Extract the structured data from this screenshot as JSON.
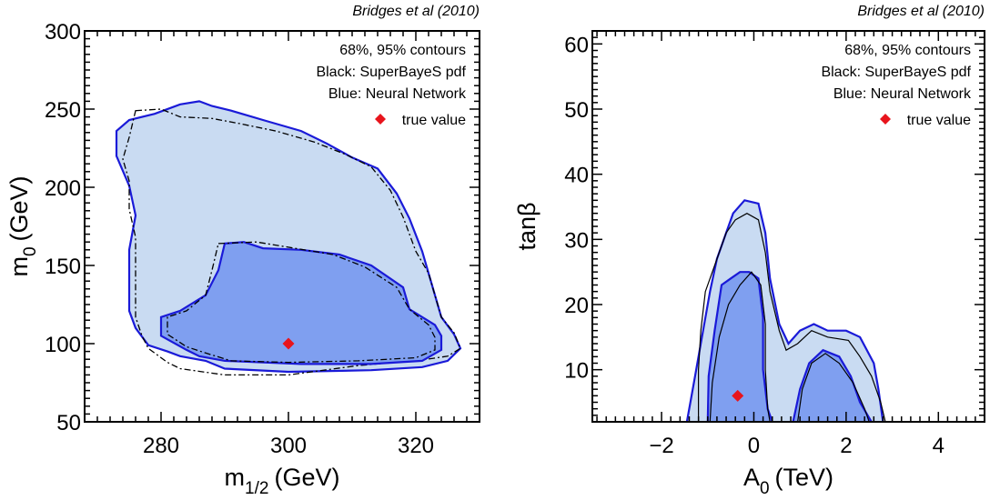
{
  "colors": {
    "outer_fill": "#c9dbf2",
    "inner_fill": "#7f9ff0",
    "contour_blue": "#1a1ad8",
    "contour_black": "#000000",
    "true_value": "#e8141c",
    "legend_blue_text": "#1a1ad8"
  },
  "chart_data": [
    {
      "type": "contour",
      "title": "Bridges et al (2010)",
      "xlabel": {
        "main": "m",
        "sub": "1/2",
        "unit": "(GeV)"
      },
      "ylabel": {
        "main": "m",
        "sub": "0",
        "unit": "(GeV)"
      },
      "xlim": [
        268,
        330
      ],
      "ylim": [
        50,
        300
      ],
      "xticks": [
        280,
        300,
        320
      ],
      "yticks": [
        50,
        100,
        150,
        200,
        250,
        300
      ],
      "legend": {
        "placement": "top-right",
        "lines": [
          "68%, 95% contours",
          "Black: SuperBayeS pdf",
          "Blue: Neural Network"
        ],
        "marker_label": "true value"
      },
      "true_value": {
        "x": 300,
        "y": 100
      },
      "contours": {
        "nn_95": [
          [
            283,
            253
          ],
          [
            286,
            255
          ],
          [
            288,
            252
          ],
          [
            291,
            249
          ],
          [
            296,
            243
          ],
          [
            302,
            236
          ],
          [
            306,
            228
          ],
          [
            310,
            219
          ],
          [
            314,
            212
          ],
          [
            317,
            196
          ],
          [
            319,
            180
          ],
          [
            321,
            159
          ],
          [
            322,
            145
          ],
          [
            324,
            117
          ],
          [
            326,
            106
          ],
          [
            327,
            97
          ],
          [
            325,
            89
          ],
          [
            321,
            85
          ],
          [
            313,
            83
          ],
          [
            300,
            82
          ],
          [
            290,
            84
          ],
          [
            287,
            89
          ],
          [
            283,
            92
          ],
          [
            281,
            95
          ],
          [
            278,
            99
          ],
          [
            276,
            110
          ],
          [
            275,
            121
          ],
          [
            275,
            139
          ],
          [
            275,
            160
          ],
          [
            276,
            182
          ],
          [
            275,
            201
          ],
          [
            273,
            220
          ],
          [
            273,
            236
          ],
          [
            275,
            243
          ],
          [
            279,
            247
          ],
          [
            283,
            253
          ]
        ],
        "nn_68": [
          [
            290,
            164
          ],
          [
            293,
            165
          ],
          [
            296,
            161
          ],
          [
            302,
            160
          ],
          [
            308,
            157
          ],
          [
            313,
            150
          ],
          [
            318,
            136
          ],
          [
            319,
            122
          ],
          [
            323,
            112
          ],
          [
            324,
            105
          ],
          [
            324,
            96
          ],
          [
            321,
            89
          ],
          [
            313,
            87
          ],
          [
            302,
            87
          ],
          [
            290,
            89
          ],
          [
            286,
            92
          ],
          [
            284,
            96
          ],
          [
            280,
            105
          ],
          [
            280,
            117
          ],
          [
            283,
            121
          ],
          [
            287,
            131
          ],
          [
            289,
            147
          ],
          [
            290,
            164
          ]
        ],
        "sb_95": [
          [
            276,
            249
          ],
          [
            280,
            250
          ],
          [
            283,
            245
          ],
          [
            288,
            244
          ],
          [
            292,
            241
          ],
          [
            298,
            236
          ],
          [
            304,
            229
          ],
          [
            309,
            221
          ],
          [
            313,
            213
          ],
          [
            316,
            198
          ],
          [
            318,
            181
          ],
          [
            320,
            159
          ],
          [
            322,
            145
          ],
          [
            324,
            117
          ],
          [
            326,
            107
          ],
          [
            327,
            97
          ],
          [
            325,
            92
          ],
          [
            320,
            89
          ],
          [
            311,
            86
          ],
          [
            300,
            80
          ],
          [
            290,
            80
          ],
          [
            283,
            84
          ],
          [
            281,
            88
          ],
          [
            278,
            97
          ],
          [
            277,
            105
          ],
          [
            276,
            117
          ],
          [
            276,
            133
          ],
          [
            276,
            151
          ],
          [
            276,
            168
          ],
          [
            275,
            186
          ],
          [
            275,
            204
          ],
          [
            274,
            218
          ],
          [
            275,
            232
          ],
          [
            276,
            249
          ]
        ],
        "sb_68": [
          [
            289,
            164
          ],
          [
            295,
            165
          ],
          [
            301,
            161
          ],
          [
            307,
            157
          ],
          [
            312,
            149
          ],
          [
            317,
            136
          ],
          [
            319,
            122
          ],
          [
            322,
            112
          ],
          [
            323,
            104
          ],
          [
            323,
            96
          ],
          [
            320,
            91
          ],
          [
            311,
            89
          ],
          [
            300,
            88
          ],
          [
            291,
            89
          ],
          [
            287,
            94
          ],
          [
            284,
            98
          ],
          [
            281,
            106
          ],
          [
            281,
            117
          ],
          [
            284,
            121
          ],
          [
            287,
            131
          ],
          [
            288,
            147
          ],
          [
            289,
            164
          ]
        ]
      }
    },
    {
      "type": "contour",
      "title": "Bridges et al (2010)",
      "xlabel": {
        "main": "A",
        "sub": "0",
        "unit": "(TeV)"
      },
      "ylabel": {
        "main": "tanβ",
        "sub": "",
        "unit": ""
      },
      "xlim": [
        -3.5,
        5
      ],
      "ylim": [
        2,
        62
      ],
      "xticks": [
        -2,
        0,
        2,
        4
      ],
      "xtick_labels": [
        "−2",
        "0",
        "2",
        "4"
      ],
      "yticks": [
        10,
        20,
        30,
        40,
        50,
        60
      ],
      "legend": {
        "placement": "top-right",
        "lines": [
          "68%, 95% contours",
          "Black: SuperBayeS pdf",
          "Blue: Neural Network"
        ],
        "marker_label": "true value"
      },
      "true_value": {
        "x": -0.35,
        "y": 6
      },
      "contours": {
        "nn_95": [
          [
            -1.45,
            2
          ],
          [
            -1.3,
            8
          ],
          [
            -1.1,
            16
          ],
          [
            -0.95,
            22
          ],
          [
            -0.8,
            27
          ],
          [
            -0.6,
            31
          ],
          [
            -0.45,
            34
          ],
          [
            -0.2,
            36
          ],
          [
            0.1,
            35.5
          ],
          [
            0.25,
            31
          ],
          [
            0.35,
            24
          ],
          [
            0.55,
            17
          ],
          [
            0.75,
            14
          ],
          [
            1.0,
            16
          ],
          [
            1.3,
            17
          ],
          [
            1.6,
            16
          ],
          [
            2.0,
            16
          ],
          [
            2.3,
            15
          ],
          [
            2.6,
            11
          ],
          [
            2.7,
            7
          ],
          [
            2.8,
            2
          ]
        ],
        "nn_68_left": [
          [
            -1.0,
            2
          ],
          [
            -0.98,
            9
          ],
          [
            -0.85,
            16
          ],
          [
            -0.7,
            23
          ],
          [
            -0.5,
            24
          ],
          [
            -0.3,
            25
          ],
          [
            -0.1,
            25
          ],
          [
            0.1,
            24
          ],
          [
            0.2,
            18
          ],
          [
            0.2,
            10
          ],
          [
            0.3,
            4
          ],
          [
            0.4,
            2
          ]
        ],
        "nn_68_right": [
          [
            0.85,
            2
          ],
          [
            1.0,
            7
          ],
          [
            1.2,
            11
          ],
          [
            1.5,
            13
          ],
          [
            1.85,
            12
          ],
          [
            2.1,
            9
          ],
          [
            2.3,
            5
          ],
          [
            2.55,
            2
          ]
        ],
        "sb_95": [
          [
            -1.2,
            2
          ],
          [
            -1.2,
            10
          ],
          [
            -1.15,
            16
          ],
          [
            -1.05,
            22
          ],
          [
            -0.85,
            26
          ],
          [
            -0.6,
            31
          ],
          [
            -0.4,
            33
          ],
          [
            -0.15,
            34
          ],
          [
            0.1,
            33
          ],
          [
            0.25,
            28
          ],
          [
            0.35,
            22
          ],
          [
            0.55,
            16
          ],
          [
            0.7,
            13
          ],
          [
            0.95,
            14
          ],
          [
            1.25,
            16
          ],
          [
            1.6,
            15
          ],
          [
            2.05,
            14.5
          ],
          [
            2.3,
            12
          ],
          [
            2.55,
            9
          ],
          [
            2.75,
            5
          ],
          [
            2.85,
            2
          ]
        ],
        "sb_68_left": [
          [
            -0.95,
            2
          ],
          [
            -0.9,
            8
          ],
          [
            -0.75,
            15
          ],
          [
            -0.55,
            20
          ],
          [
            -0.3,
            23
          ],
          [
            -0.05,
            25
          ],
          [
            0.15,
            23
          ],
          [
            0.25,
            17
          ],
          [
            0.25,
            10
          ],
          [
            0.3,
            4
          ],
          [
            0.35,
            2
          ]
        ],
        "sb_68_right": [
          [
            0.95,
            2
          ],
          [
            1.05,
            7
          ],
          [
            1.25,
            11
          ],
          [
            1.55,
            12.5
          ],
          [
            1.85,
            11
          ],
          [
            2.15,
            8
          ],
          [
            2.4,
            4
          ],
          [
            2.5,
            2
          ]
        ]
      }
    }
  ]
}
